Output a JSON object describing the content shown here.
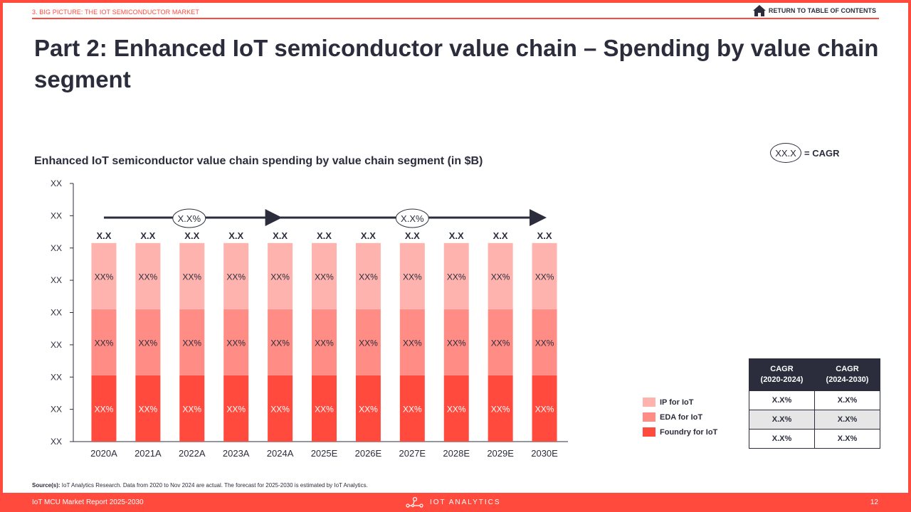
{
  "header": {
    "section": "3. BIG PICTURE: THE IOT SEMICONDUCTOR MARKET",
    "toc_link": "RETURN TO TABLE OF CONTENTS",
    "title": "Part 2: Enhanced IoT semiconductor value chain – Spending by value chain segment"
  },
  "cagr_key": {
    "oval_text": "XX.X",
    "label": "= CAGR"
  },
  "colors": {
    "ip": "#ffb3ae",
    "eda": "#ff8c85",
    "foundry": "#ff4a3d",
    "dark": "#2b2d3c",
    "accent": "#ff4a3d"
  },
  "chart_data": {
    "type": "bar",
    "stacked": true,
    "title": "Enhanced IoT semiconductor value chain spending by value chain segment  (in $B)",
    "xlabel": "",
    "ylabel": "",
    "categories": [
      "2020A",
      "2021A",
      "2022A",
      "2023A",
      "2024A",
      "2025E",
      "2026E",
      "2027E",
      "2028E",
      "2029E",
      "2030E"
    ],
    "y_tick_labels": [
      "XX",
      "XX",
      "XX",
      "XX",
      "XX",
      "XX",
      "XX",
      "XX",
      "XX"
    ],
    "series": [
      {
        "name": "Foundry for IoT",
        "color": "#ff4a3d",
        "labels": [
          "XX%",
          "XX%",
          "XX%",
          "XX%",
          "XX%",
          "XX%",
          "XX%",
          "XX%",
          "XX%",
          "XX%",
          "XX%"
        ],
        "values": [
          1,
          1,
          1,
          1,
          1,
          1,
          1,
          1,
          1,
          1,
          1
        ]
      },
      {
        "name": "EDA for IoT",
        "color": "#ff8c85",
        "labels": [
          "XX%",
          "XX%",
          "XX%",
          "XX%",
          "XX%",
          "XX%",
          "XX%",
          "XX%",
          "XX%",
          "XX%",
          "XX%"
        ],
        "values": [
          1,
          1,
          1,
          1,
          1,
          1,
          1,
          1,
          1,
          1,
          1
        ]
      },
      {
        "name": "IP for IoT",
        "color": "#ffb3ae",
        "labels": [
          "XX%",
          "XX%",
          "XX%",
          "XX%",
          "XX%",
          "XX%",
          "XX%",
          "XX%",
          "XX%",
          "XX%",
          "XX%"
        ],
        "values": [
          1,
          1,
          1,
          1,
          1,
          1,
          1,
          1,
          1,
          1,
          1
        ]
      }
    ],
    "totals": [
      "X.X",
      "X.X",
      "X.X",
      "X.X",
      "X.X",
      "X.X",
      "X.X",
      "X.X",
      "X.X",
      "X.X",
      "X.X"
    ],
    "cagr_arrows": [
      {
        "from": "2020A",
        "to": "2024A",
        "label": "X.X%"
      },
      {
        "from": "2024A",
        "to": "2030E",
        "label": "X.X%"
      }
    ],
    "ylim": [
      0,
      3.9
    ],
    "grid": false,
    "legend_position": "right"
  },
  "legend": [
    {
      "label": "IP for IoT",
      "color": "#ffb3ae"
    },
    {
      "label": "EDA for IoT",
      "color": "#ff8c85"
    },
    {
      "label": "Foundry for IoT",
      "color": "#ff4a3d"
    }
  ],
  "cagr_table": {
    "headers": [
      [
        "CAGR",
        "(2020-2024)"
      ],
      [
        "CAGR",
        "(2024-2030)"
      ]
    ],
    "rows": [
      [
        "X.X%",
        "X.X%"
      ],
      [
        "X.X%",
        "X.X%"
      ],
      [
        "X.X%",
        "X.X%"
      ]
    ]
  },
  "source": {
    "label": "Source(s):",
    "text": " IoT Analytics Research. Data from 2020 to Nov 2024 are actual. The forecast for 2025-2030 is estimated by IoT Analytics."
  },
  "footer": {
    "report": "IoT MCU Market Report 2025-2030",
    "brand": "IOT ANALYTICS",
    "page": "12"
  }
}
